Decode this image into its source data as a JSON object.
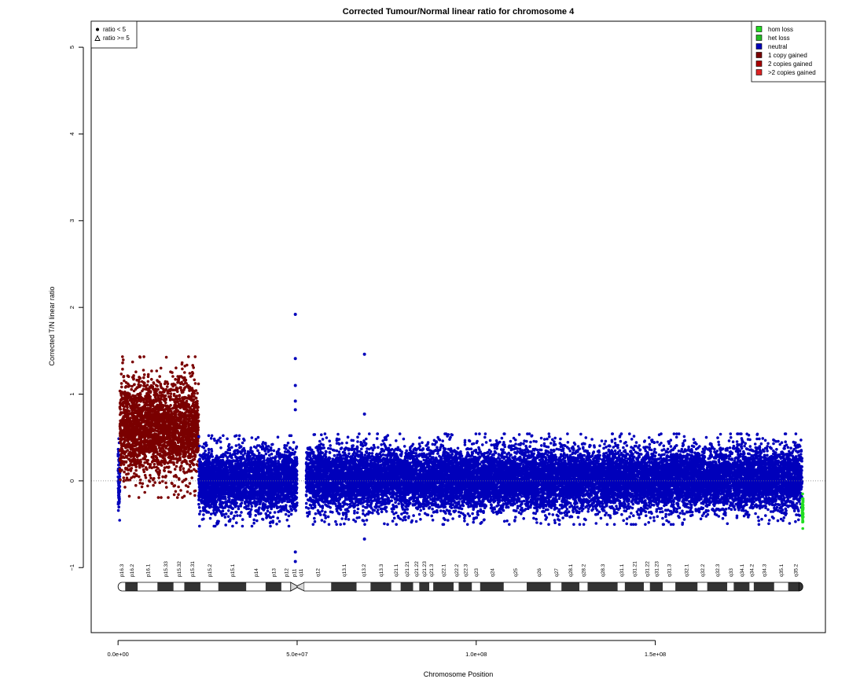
{
  "chart_data": {
    "type": "scatter",
    "title": "Corrected Tumour/Normal linear ratio for chromosome  4",
    "xlabel": "Chromosome Position",
    "ylabel": "Corrected T/N linear ratio",
    "xlim": [
      -7500000,
      197500000
    ],
    "ylim": [
      -1.75,
      5.3
    ],
    "x_ticks": [
      0,
      50000000,
      100000000,
      150000000
    ],
    "x_tick_labels": [
      "0.0e+00",
      "5.0e+07",
      "1.0e+08",
      "1.5e+08"
    ],
    "y_ticks": [
      -1,
      0,
      1,
      2,
      3,
      4,
      5
    ],
    "y_tick_labels": [
      "−1",
      "0",
      "1",
      "2",
      "3",
      "4",
      "5"
    ],
    "reference_line": 0,
    "shape_legend": {
      "position": "top-left",
      "entries": [
        {
          "label": "ratio < 5",
          "symbol": "filled-circle"
        },
        {
          "label": "ratio >= 5",
          "symbol": "open-triangle"
        }
      ]
    },
    "state_legend": {
      "position": "top-right",
      "entries": [
        {
          "label": "hom loss",
          "color": "#22dd22"
        },
        {
          "label": "het loss",
          "color": "#22bb22"
        },
        {
          "label": "neutral",
          "color": "#0000bb"
        },
        {
          "label": "1 copy gained",
          "color": "#7a0000"
        },
        {
          "label": "2 copies gained",
          "color": "#aa0000"
        },
        {
          "label": ">2 copies gained",
          "color": "#dd2222"
        }
      ]
    },
    "segments": [
      {
        "state": "neutral",
        "x_start": 0,
        "x_end": 500000,
        "mean": 0.0,
        "spread": 0.18
      },
      {
        "state": "1 copy gained",
        "x_start": 500000,
        "x_end": 22500000,
        "mean": 0.62,
        "spread": 0.28
      },
      {
        "state": "neutral",
        "x_start": 22500000,
        "x_end": 50000000,
        "mean": 0.0,
        "spread": 0.18
      },
      {
        "state": "neutral",
        "x_start": 52500000,
        "x_end": 191000000,
        "mean": 0.02,
        "spread": 0.18
      },
      {
        "state": "hom loss",
        "x_start": 191000000,
        "x_end": 191300000,
        "mean": -0.33,
        "spread": 0.08
      }
    ],
    "outliers": [
      {
        "x": 49500000,
        "y": 1.92,
        "state": "neutral"
      },
      {
        "x": 49500000,
        "y": 1.41,
        "state": "neutral"
      },
      {
        "x": 49500000,
        "y": 1.1,
        "state": "neutral"
      },
      {
        "x": 49500000,
        "y": 0.92,
        "state": "neutral"
      },
      {
        "x": 49500000,
        "y": 0.82,
        "state": "neutral"
      },
      {
        "x": 49500000,
        "y": -0.82,
        "state": "neutral"
      },
      {
        "x": 49500000,
        "y": -0.93,
        "state": "neutral"
      },
      {
        "x": 68800000,
        "y": 1.46,
        "state": "neutral"
      },
      {
        "x": 68800000,
        "y": 0.77,
        "state": "neutral"
      },
      {
        "x": 68800000,
        "y": -0.67,
        "state": "neutral"
      }
    ],
    "ideogram": {
      "y": -1.22,
      "bands": [
        {
          "name": "p16.3",
          "start": 0,
          "end": 2000000,
          "stain": "gneg"
        },
        {
          "name": "p16.2",
          "start": 2000000,
          "end": 5500000,
          "stain": "gpos"
        },
        {
          "name": "p16.1",
          "start": 5500000,
          "end": 11000000,
          "stain": "gneg"
        },
        {
          "name": "p15.33",
          "start": 11000000,
          "end": 15500000,
          "stain": "gpos"
        },
        {
          "name": "p15.32",
          "start": 15500000,
          "end": 18500000,
          "stain": "gneg"
        },
        {
          "name": "p15.31",
          "start": 18500000,
          "end": 23000000,
          "stain": "gpos"
        },
        {
          "name": "p15.2",
          "start": 23000000,
          "end": 28000000,
          "stain": "gneg"
        },
        {
          "name": "p15.1",
          "start": 28000000,
          "end": 35800000,
          "stain": "gpos"
        },
        {
          "name": "p14",
          "start": 35800000,
          "end": 41200000,
          "stain": "gneg"
        },
        {
          "name": "p13",
          "start": 41200000,
          "end": 45600000,
          "stain": "gpos"
        },
        {
          "name": "p12",
          "start": 45600000,
          "end": 48200000,
          "stain": "gneg"
        },
        {
          "name": "p11",
          "start": 48200000,
          "end": 50000000,
          "stain": "acen"
        },
        {
          "name": "q11",
          "start": 50000000,
          "end": 52000000,
          "stain": "acen"
        },
        {
          "name": "q12",
          "start": 52000000,
          "end": 59500000,
          "stain": "gneg"
        },
        {
          "name": "q13.1",
          "start": 59500000,
          "end": 66600000,
          "stain": "gpos"
        },
        {
          "name": "q13.2",
          "start": 66600000,
          "end": 70500000,
          "stain": "gneg"
        },
        {
          "name": "q13.3",
          "start": 70500000,
          "end": 76300000,
          "stain": "gpos"
        },
        {
          "name": "q21.1",
          "start": 76300000,
          "end": 78900000,
          "stain": "gneg"
        },
        {
          "name": "q21.21",
          "start": 78900000,
          "end": 82400000,
          "stain": "gpos"
        },
        {
          "name": "q21.22",
          "start": 82400000,
          "end": 84100000,
          "stain": "gneg"
        },
        {
          "name": "q21.23",
          "start": 84100000,
          "end": 86900000,
          "stain": "gpos"
        },
        {
          "name": "q21.3",
          "start": 86900000,
          "end": 88000000,
          "stain": "gneg"
        },
        {
          "name": "q22.1",
          "start": 88000000,
          "end": 93700000,
          "stain": "gpos"
        },
        {
          "name": "q22.2",
          "start": 93700000,
          "end": 95100000,
          "stain": "gneg"
        },
        {
          "name": "q22.3",
          "start": 95100000,
          "end": 98800000,
          "stain": "gpos"
        },
        {
          "name": "q23",
          "start": 98800000,
          "end": 101100000,
          "stain": "gneg"
        },
        {
          "name": "q24",
          "start": 101100000,
          "end": 107700000,
          "stain": "gpos"
        },
        {
          "name": "q25",
          "start": 107700000,
          "end": 114100000,
          "stain": "gneg"
        },
        {
          "name": "q26",
          "start": 114100000,
          "end": 120800000,
          "stain": "gpos"
        },
        {
          "name": "q27",
          "start": 120800000,
          "end": 123800000,
          "stain": "gneg"
        },
        {
          "name": "q28.1",
          "start": 123800000,
          "end": 128800000,
          "stain": "gpos"
        },
        {
          "name": "q28.2",
          "start": 128800000,
          "end": 131100000,
          "stain": "gneg"
        },
        {
          "name": "q28.3",
          "start": 131100000,
          "end": 139500000,
          "stain": "gpos"
        },
        {
          "name": "q31.1",
          "start": 139500000,
          "end": 141500000,
          "stain": "gneg"
        },
        {
          "name": "q31.21",
          "start": 141500000,
          "end": 146800000,
          "stain": "gpos"
        },
        {
          "name": "q31.22",
          "start": 146800000,
          "end": 148500000,
          "stain": "gneg"
        },
        {
          "name": "q31.23",
          "start": 148500000,
          "end": 152100000,
          "stain": "gpos"
        },
        {
          "name": "q31.3",
          "start": 152100000,
          "end": 155600000,
          "stain": "gneg"
        },
        {
          "name": "q32.1",
          "start": 155600000,
          "end": 161800000,
          "stain": "gpos"
        },
        {
          "name": "q32.2",
          "start": 161800000,
          "end": 164500000,
          "stain": "gneg"
        },
        {
          "name": "q32.3",
          "start": 164500000,
          "end": 170100000,
          "stain": "gpos"
        },
        {
          "name": "q33",
          "start": 170100000,
          "end": 171900000,
          "stain": "gneg"
        },
        {
          "name": "q34.1",
          "start": 171900000,
          "end": 176300000,
          "stain": "gpos"
        },
        {
          "name": "q34.2",
          "start": 176300000,
          "end": 177500000,
          "stain": "gneg"
        },
        {
          "name": "q34.3",
          "start": 177500000,
          "end": 183200000,
          "stain": "gpos"
        },
        {
          "name": "q35.1",
          "start": 183200000,
          "end": 187100000,
          "stain": "gneg"
        },
        {
          "name": "q35.2",
          "start": 187100000,
          "end": 191200000,
          "stain": "gpos"
        }
      ]
    }
  }
}
